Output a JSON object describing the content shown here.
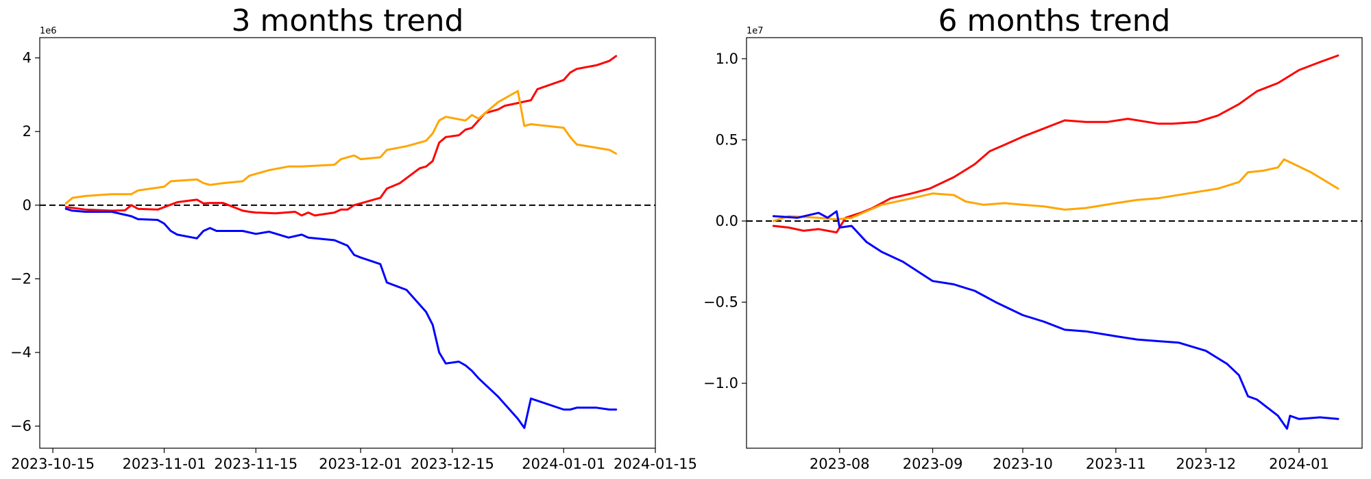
{
  "chart_data": [
    {
      "type": "line",
      "title": "3 months trend",
      "xlabel": "",
      "ylabel": "",
      "y_exponent_label": "1e6",
      "x_axis_kind": "date",
      "xlim": [
        "2023-10-13",
        "2024-01-15"
      ],
      "ylim": [
        -6.6,
        4.55
      ],
      "x_ticks": [
        "2023-10-15",
        "2023-11-01",
        "2023-11-15",
        "2023-12-01",
        "2023-12-15",
        "2024-01-01",
        "2024-01-15"
      ],
      "y_ticks": [
        -6,
        -4,
        -2,
        0,
        2,
        4
      ],
      "y_tick_labels": [
        "−6",
        "−4",
        "−2",
        "0",
        "2",
        "4"
      ],
      "grid": false,
      "reference_line": {
        "y": 0,
        "style": "dashed",
        "color": "#000000"
      },
      "series": [
        {
          "color": "#ff0000",
          "x": [
            "2023-10-17",
            "2023-10-20",
            "2023-10-24",
            "2023-10-26",
            "2023-10-27",
            "2023-10-28",
            "2023-10-31",
            "2023-11-03",
            "2023-11-06",
            "2023-11-07",
            "2023-11-08",
            "2023-11-10",
            "2023-11-13",
            "2023-11-14",
            "2023-11-15",
            "2023-11-18",
            "2023-11-21",
            "2023-11-22",
            "2023-11-23",
            "2023-11-24",
            "2023-11-27",
            "2023-11-28",
            "2023-11-29",
            "2023-11-30",
            "2023-12-01",
            "2023-12-04",
            "2023-12-05",
            "2023-12-07",
            "2023-12-10",
            "2023-12-11",
            "2023-12-12",
            "2023-12-13",
            "2023-12-14",
            "2023-12-16",
            "2023-12-17",
            "2023-12-18",
            "2023-12-20",
            "2023-12-22",
            "2023-12-23",
            "2023-12-27",
            "2023-12-28",
            "2024-01-01",
            "2024-01-02",
            "2024-01-03",
            "2024-01-06",
            "2024-01-08",
            "2024-01-09"
          ],
          "values": [
            -0.05,
            -0.12,
            -0.15,
            -0.14,
            0.0,
            -0.1,
            -0.12,
            0.08,
            0.15,
            0.05,
            0.06,
            0.06,
            -0.15,
            -0.18,
            -0.2,
            -0.22,
            -0.18,
            -0.28,
            -0.2,
            -0.28,
            -0.2,
            -0.12,
            -0.12,
            0.0,
            0.05,
            0.2,
            0.45,
            0.6,
            1.0,
            1.05,
            1.2,
            1.7,
            1.85,
            1.9,
            2.05,
            2.1,
            2.5,
            2.6,
            2.7,
            2.85,
            3.15,
            3.4,
            3.6,
            3.7,
            3.8,
            3.92,
            4.05
          ]
        },
        {
          "color": "#ffa500",
          "x": [
            "2023-10-17",
            "2023-10-18",
            "2023-10-20",
            "2023-10-24",
            "2023-10-27",
            "2023-10-28",
            "2023-10-30",
            "2023-11-01",
            "2023-11-02",
            "2023-11-06",
            "2023-11-07",
            "2023-11-08",
            "2023-11-10",
            "2023-11-13",
            "2023-11-14",
            "2023-11-15",
            "2023-11-17",
            "2023-11-20",
            "2023-11-22",
            "2023-11-27",
            "2023-11-28",
            "2023-11-29",
            "2023-11-30",
            "2023-12-01",
            "2023-12-04",
            "2023-12-05",
            "2023-12-08",
            "2023-12-11",
            "2023-12-12",
            "2023-12-13",
            "2023-12-14",
            "2023-12-17",
            "2023-12-18",
            "2023-12-19",
            "2023-12-22",
            "2023-12-25",
            "2023-12-26",
            "2023-12-27",
            "2024-01-01",
            "2024-01-02",
            "2024-01-03",
            "2024-01-08",
            "2024-01-09"
          ],
          "values": [
            0.05,
            0.2,
            0.25,
            0.3,
            0.3,
            0.4,
            0.45,
            0.5,
            0.65,
            0.7,
            0.6,
            0.55,
            0.6,
            0.65,
            0.8,
            0.85,
            0.95,
            1.05,
            1.05,
            1.1,
            1.25,
            1.3,
            1.35,
            1.25,
            1.3,
            1.5,
            1.6,
            1.75,
            1.95,
            2.3,
            2.4,
            2.3,
            2.45,
            2.35,
            2.8,
            3.1,
            2.15,
            2.2,
            2.1,
            1.85,
            1.65,
            1.5,
            1.4
          ]
        },
        {
          "color": "#0000ff",
          "x": [
            "2023-10-17",
            "2023-10-18",
            "2023-10-20",
            "2023-10-24",
            "2023-10-27",
            "2023-10-28",
            "2023-10-31",
            "2023-11-01",
            "2023-11-02",
            "2023-11-03",
            "2023-11-06",
            "2023-11-07",
            "2023-11-08",
            "2023-11-09",
            "2023-11-13",
            "2023-11-15",
            "2023-11-17",
            "2023-11-20",
            "2023-11-22",
            "2023-11-23",
            "2023-11-27",
            "2023-11-29",
            "2023-11-30",
            "2023-12-01",
            "2023-12-04",
            "2023-12-05",
            "2023-12-08",
            "2023-12-10",
            "2023-12-11",
            "2023-12-12",
            "2023-12-13",
            "2023-12-14",
            "2023-12-16",
            "2023-12-17",
            "2023-12-18",
            "2023-12-19",
            "2023-12-22",
            "2023-12-25",
            "2023-12-26",
            "2023-12-27",
            "2024-01-01",
            "2024-01-02",
            "2024-01-03",
            "2024-01-06",
            "2024-01-08",
            "2024-01-09"
          ],
          "values": [
            -0.1,
            -0.15,
            -0.18,
            -0.18,
            -0.3,
            -0.38,
            -0.4,
            -0.5,
            -0.7,
            -0.8,
            -0.9,
            -0.7,
            -0.62,
            -0.7,
            -0.7,
            -0.78,
            -0.72,
            -0.88,
            -0.8,
            -0.88,
            -0.95,
            -1.1,
            -1.35,
            -1.42,
            -1.6,
            -2.1,
            -2.3,
            -2.7,
            -2.9,
            -3.25,
            -4.0,
            -4.3,
            -4.25,
            -4.35,
            -4.5,
            -4.7,
            -5.2,
            -5.8,
            -6.05,
            -5.25,
            -5.55,
            -5.55,
            -5.5,
            -5.5,
            -5.55,
            -5.55
          ]
        }
      ]
    },
    {
      "type": "line",
      "title": "6 months trend",
      "xlabel": "",
      "ylabel": "",
      "y_exponent_label": "1e7",
      "x_axis_kind": "date",
      "xlim": [
        "2023-07-01",
        "2024-01-22"
      ],
      "ylim": [
        -1.4,
        1.13
      ],
      "x_ticks": [
        "2023-08",
        "2023-09",
        "2023-10",
        "2023-11",
        "2023-12",
        "2024-01"
      ],
      "y_ticks": [
        -1.0,
        -0.5,
        0.0,
        0.5,
        1.0
      ],
      "y_tick_labels": [
        "−1.0",
        "−0.5",
        "0.0",
        "0.5",
        "1.0"
      ],
      "grid": false,
      "reference_line": {
        "y": 0,
        "style": "dashed",
        "color": "#000000"
      },
      "series": [
        {
          "color": "#ff0000",
          "x": [
            "2023-07-10",
            "2023-07-15",
            "2023-07-20",
            "2023-07-25",
            "2023-07-31",
            "2023-08-03",
            "2023-08-08",
            "2023-08-12",
            "2023-08-18",
            "2023-08-25",
            "2023-08-31",
            "2023-09-08",
            "2023-09-15",
            "2023-09-20",
            "2023-09-25",
            "2023-10-01",
            "2023-10-08",
            "2023-10-15",
            "2023-10-22",
            "2023-10-29",
            "2023-11-05",
            "2023-11-15",
            "2023-11-20",
            "2023-11-28",
            "2023-12-05",
            "2023-12-12",
            "2023-12-18",
            "2023-12-25",
            "2024-01-01",
            "2024-01-08",
            "2024-01-14"
          ],
          "values": [
            -0.03,
            -0.04,
            -0.06,
            -0.05,
            -0.07,
            0.02,
            0.05,
            0.08,
            0.14,
            0.17,
            0.2,
            0.27,
            0.35,
            0.43,
            0.47,
            0.52,
            0.57,
            0.62,
            0.61,
            0.61,
            0.63,
            0.6,
            0.6,
            0.61,
            0.65,
            0.72,
            0.8,
            0.85,
            0.93,
            0.98,
            1.02
          ]
        },
        {
          "color": "#ffa500",
          "x": [
            "2023-07-10",
            "2023-07-15",
            "2023-07-25",
            "2023-07-31",
            "2023-08-05",
            "2023-08-10",
            "2023-08-15",
            "2023-08-25",
            "2023-09-01",
            "2023-09-08",
            "2023-09-12",
            "2023-09-18",
            "2023-09-25",
            "2023-10-01",
            "2023-10-08",
            "2023-10-15",
            "2023-10-22",
            "2023-11-01",
            "2023-11-08",
            "2023-11-15",
            "2023-11-25",
            "2023-12-05",
            "2023-12-12",
            "2023-12-15",
            "2023-12-20",
            "2023-12-25",
            "2023-12-27",
            "2024-01-05",
            "2024-01-14"
          ],
          "values": [
            0.0,
            0.03,
            0.02,
            0.01,
            0.02,
            0.06,
            0.1,
            0.14,
            0.17,
            0.16,
            0.12,
            0.1,
            0.11,
            0.1,
            0.09,
            0.07,
            0.08,
            0.11,
            0.13,
            0.14,
            0.17,
            0.2,
            0.24,
            0.3,
            0.31,
            0.33,
            0.38,
            0.3,
            0.2
          ]
        },
        {
          "color": "#0000ff",
          "x": [
            "2023-07-10",
            "2023-07-18",
            "2023-07-25",
            "2023-07-28",
            "2023-07-31",
            "2023-08-01",
            "2023-08-05",
            "2023-08-10",
            "2023-08-15",
            "2023-08-22",
            "2023-09-01",
            "2023-09-08",
            "2023-09-15",
            "2023-09-22",
            "2023-10-01",
            "2023-10-08",
            "2023-10-15",
            "2023-10-22",
            "2023-11-01",
            "2023-11-08",
            "2023-11-15",
            "2023-11-22",
            "2023-12-01",
            "2023-12-08",
            "2023-12-12",
            "2023-12-15",
            "2023-12-18",
            "2023-12-25",
            "2023-12-28",
            "2023-12-29",
            "2024-01-01",
            "2024-01-08",
            "2024-01-14"
          ],
          "values": [
            0.03,
            0.02,
            0.05,
            0.02,
            0.06,
            -0.04,
            -0.03,
            -0.13,
            -0.19,
            -0.25,
            -0.37,
            -0.39,
            -0.43,
            -0.5,
            -0.58,
            -0.62,
            -0.67,
            -0.68,
            -0.71,
            -0.73,
            -0.74,
            -0.75,
            -0.8,
            -0.88,
            -0.95,
            -1.08,
            -1.1,
            -1.2,
            -1.28,
            -1.2,
            -1.22,
            -1.21,
            -1.22
          ]
        }
      ]
    }
  ]
}
